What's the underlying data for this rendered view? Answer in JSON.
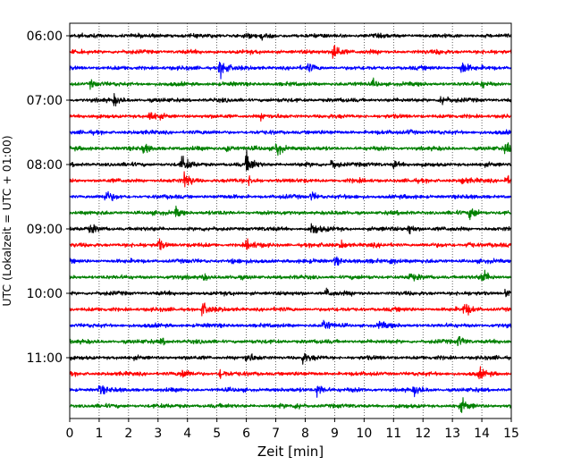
{
  "chart_data": {
    "type": "line",
    "title": "",
    "xlabel": "Zeit  [min]",
    "ylabel": "UTC (Lokalzeit = UTC + 01:00)",
    "xlim": [
      0,
      15
    ],
    "x_ticks": [
      "0",
      "1",
      "2",
      "3",
      "4",
      "5",
      "6",
      "7",
      "8",
      "9",
      "10",
      "11",
      "12",
      "13",
      "14",
      "15"
    ],
    "y_ticks": [
      "06:00",
      "07:00",
      "08:00",
      "09:00",
      "10:00",
      "11:00"
    ],
    "row_minutes": 15,
    "grid": "vertical dotted",
    "colors": [
      "#000000",
      "#ff0000",
      "#0000ff",
      "#008000"
    ],
    "series": [
      {
        "start": "06:00",
        "color": "#000000",
        "events": [
          [
            5.9,
            1.2
          ],
          [
            6.5,
            0.8
          ]
        ]
      },
      {
        "start": "06:15",
        "color": "#ff0000",
        "events": [
          [
            8.95,
            5.0
          ],
          [
            12.5,
            0.8
          ]
        ]
      },
      {
        "start": "06:30",
        "color": "#0000ff",
        "events": [
          [
            5.1,
            4.5
          ],
          [
            8.1,
            1.6
          ],
          [
            13.3,
            3.0
          ]
        ]
      },
      {
        "start": "06:45",
        "color": "#008000",
        "events": [
          [
            0.7,
            1.5
          ],
          [
            10.3,
            1.5
          ],
          [
            14.0,
            1.2
          ]
        ]
      },
      {
        "start": "07:00",
        "color": "#000000",
        "events": [
          [
            1.5,
            2.0
          ],
          [
            12.6,
            2.5
          ]
        ]
      },
      {
        "start": "07:15",
        "color": "#ff0000",
        "events": [
          [
            2.7,
            2.5
          ],
          [
            6.5,
            1.0
          ]
        ]
      },
      {
        "start": "07:30",
        "color": "#0000ff",
        "events": [
          [
            11.5,
            0.8
          ]
        ]
      },
      {
        "start": "07:45",
        "color": "#008000",
        "events": [
          [
            2.5,
            2.0
          ],
          [
            5.3,
            2.0
          ],
          [
            7.0,
            3.5
          ],
          [
            14.8,
            2.5
          ]
        ]
      },
      {
        "start": "08:00",
        "color": "#000000",
        "events": [
          [
            3.8,
            3.5
          ],
          [
            6.0,
            4.5
          ],
          [
            8.9,
            2.5
          ],
          [
            11.0,
            1.5
          ]
        ]
      },
      {
        "start": "08:15",
        "color": "#ff0000",
        "events": [
          [
            3.9,
            3.5
          ],
          [
            6.1,
            1.5
          ],
          [
            13.3,
            1.5
          ],
          [
            14.8,
            2.0
          ]
        ]
      },
      {
        "start": "08:30",
        "color": "#0000ff",
        "events": [
          [
            1.2,
            2.5
          ],
          [
            8.2,
            2.0
          ]
        ]
      },
      {
        "start": "08:45",
        "color": "#008000",
        "events": [
          [
            3.6,
            2.0
          ],
          [
            13.6,
            3.0
          ]
        ]
      },
      {
        "start": "09:00",
        "color": "#000000",
        "events": [
          [
            0.7,
            1.5
          ],
          [
            8.2,
            3.0
          ],
          [
            11.5,
            2.5
          ]
        ]
      },
      {
        "start": "09:15",
        "color": "#ff0000",
        "events": [
          [
            3.0,
            2.5
          ],
          [
            6.0,
            2.0
          ],
          [
            9.2,
            2.0
          ],
          [
            13.5,
            1.5
          ]
        ]
      },
      {
        "start": "09:30",
        "color": "#0000ff",
        "events": [
          [
            5.5,
            1.0
          ],
          [
            9.0,
            2.0
          ],
          [
            10.9,
            1.5
          ]
        ]
      },
      {
        "start": "09:45",
        "color": "#008000",
        "events": [
          [
            4.5,
            1.5
          ],
          [
            11.5,
            1.5
          ],
          [
            14.0,
            3.0
          ]
        ]
      },
      {
        "start": "10:00",
        "color": "#000000",
        "events": [
          [
            8.7,
            2.0
          ],
          [
            14.8,
            1.8
          ]
        ]
      },
      {
        "start": "10:15",
        "color": "#ff0000",
        "events": [
          [
            4.5,
            3.0
          ],
          [
            13.4,
            3.0
          ]
        ]
      },
      {
        "start": "10:30",
        "color": "#0000ff",
        "events": [
          [
            8.6,
            2.5
          ],
          [
            10.5,
            1.5
          ]
        ]
      },
      {
        "start": "10:45",
        "color": "#008000",
        "events": [
          [
            3.1,
            1.2
          ],
          [
            13.2,
            2.5
          ]
        ]
      },
      {
        "start": "11:00",
        "color": "#000000",
        "events": [
          [
            6.0,
            2.0
          ],
          [
            7.9,
            2.0
          ]
        ]
      },
      {
        "start": "11:15",
        "color": "#ff0000",
        "events": [
          [
            3.8,
            2.0
          ],
          [
            5.1,
            2.0
          ],
          [
            13.9,
            2.0
          ]
        ]
      },
      {
        "start": "11:30",
        "color": "#0000ff",
        "events": [
          [
            1.0,
            2.0
          ],
          [
            8.4,
            3.0
          ],
          [
            11.7,
            1.8
          ]
        ]
      },
      {
        "start": "11:45",
        "color": "#008000",
        "events": [
          [
            7.7,
            1.5
          ],
          [
            13.3,
            2.5
          ]
        ]
      }
    ]
  }
}
